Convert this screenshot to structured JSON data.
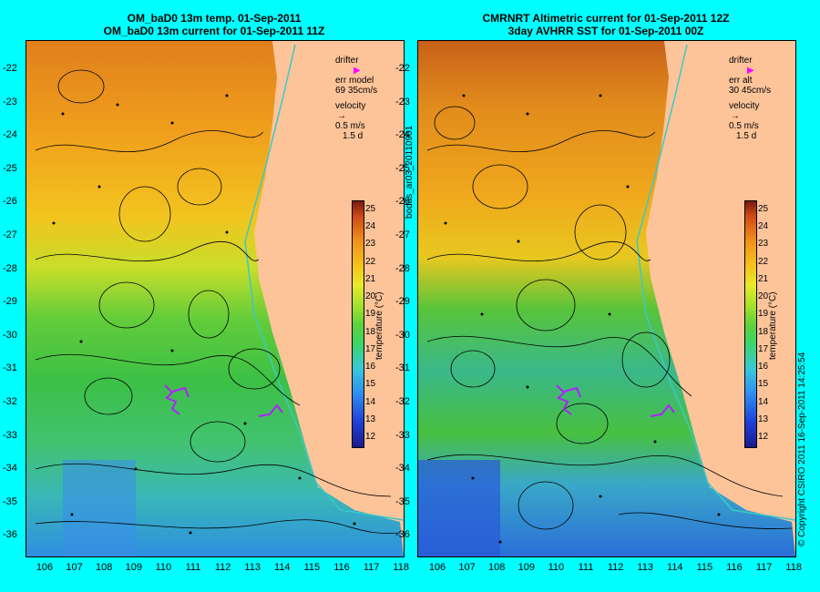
{
  "left": {
    "title1": "OM_baD0 13m temp. 01-Sep-2011",
    "title2": "OM_baD0 13m current for 01-Sep-2011 11Z",
    "legend": {
      "drifter": "drifter",
      "err1": "err model",
      "err2": "69 35cm/s",
      "velocity": "velocity",
      "vel1": "0.5 m/s",
      "vel2": "1.5 d"
    }
  },
  "right": {
    "title1": "CMRNRT Altimetric current for 01-Sep-2011 12Z",
    "title2": "3day AVHRR SST for 01-Sep-2011 00Z",
    "legend": {
      "drifter": "drifter",
      "err1": "err alt",
      "err2": "30 45cm/s",
      "velocity": "velocity",
      "vel1": "0.5 m/s",
      "vel2": "1.5 d"
    }
  },
  "colorbar": {
    "label": "temperature (°C)",
    "ticks": [
      "25",
      "24",
      "23",
      "22",
      "21",
      "20",
      "19",
      "18",
      "17",
      "16",
      "15",
      "14",
      "13",
      "12"
    ],
    "range": [
      12,
      25
    ]
  },
  "yticks": [
    "-22",
    "-23",
    "-24",
    "-25",
    "-26",
    "-27",
    "-28",
    "-29",
    "-30",
    "-31",
    "-32",
    "-33",
    "-34",
    "-35",
    "-36"
  ],
  "xticks": [
    "106",
    "107",
    "108",
    "109",
    "110",
    "111",
    "112",
    "113",
    "114",
    "115",
    "116",
    "117",
    "118"
  ],
  "side_text": "bodas_ar03_20110901",
  "copyright": "© Copyright CSIRO 2011  16-Sep-2011 14:25:54",
  "colors": {
    "background": "#00ffff",
    "land": "#fdc49a",
    "drifter": "#ff00ff",
    "shelf_contour": "#3cc8c8"
  }
}
